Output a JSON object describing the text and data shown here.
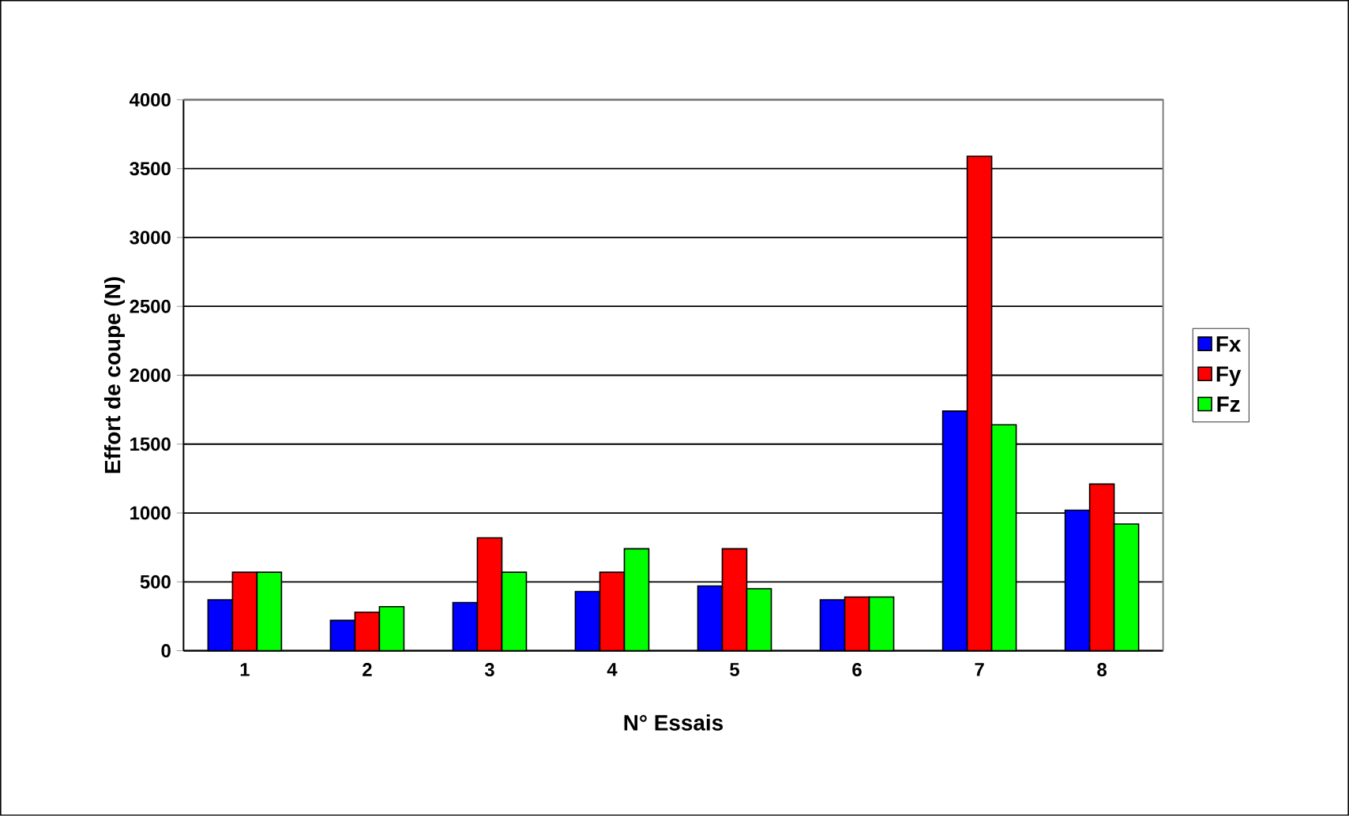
{
  "chart_data": {
    "type": "bar",
    "xlabel": "N° Essais",
    "ylabel": "Effort de coupe (N)",
    "categories": [
      "1",
      "2",
      "3",
      "4",
      "5",
      "6",
      "7",
      "8"
    ],
    "series": [
      {
        "name": "Fx",
        "color": "#0000ff",
        "values": [
          370,
          220,
          350,
          430,
          470,
          370,
          1740,
          1020
        ]
      },
      {
        "name": "Fy",
        "color": "#ff0000",
        "values": [
          570,
          280,
          820,
          570,
          740,
          390,
          3590,
          1210
        ]
      },
      {
        "name": "Fz",
        "color": "#00ff00",
        "values": [
          570,
          320,
          570,
          740,
          450,
          390,
          1640,
          920
        ]
      }
    ],
    "ylim": [
      0,
      4000
    ],
    "yticks": [
      0,
      500,
      1000,
      1500,
      2000,
      2500,
      3000,
      3500,
      4000
    ],
    "grid": "y",
    "legend": "right"
  }
}
